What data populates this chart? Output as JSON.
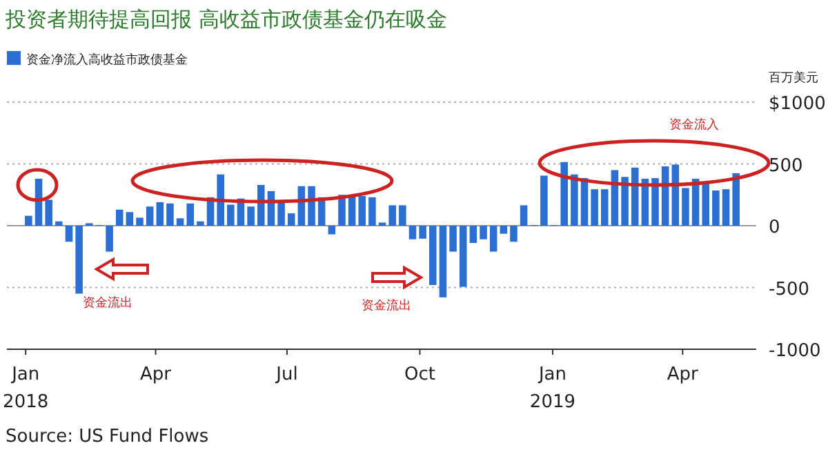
{
  "chart_data": {
    "type": "bar",
    "title": "投资者期待提高回报 高收益市政债基金仍在吸金",
    "ylabel": "百万美元",
    "annotations": [
      "资金流出",
      "资金流出",
      "资金流入",
      "Source: US Fund Flows"
    ],
    "x": [
      "2018-01-03",
      "2018-01-10",
      "2018-01-17",
      "2018-01-24",
      "2018-01-31",
      "2018-02-07",
      "2018-02-14",
      "2018-02-21",
      "2018-02-28",
      "2018-03-07",
      "2018-03-14",
      "2018-03-21",
      "2018-03-28",
      "2018-04-04",
      "2018-04-11",
      "2018-04-18",
      "2018-04-25",
      "2018-05-02",
      "2018-05-09",
      "2018-05-16",
      "2018-05-23",
      "2018-05-30",
      "2018-06-06",
      "2018-06-13",
      "2018-06-20",
      "2018-06-27",
      "2018-07-04",
      "2018-07-11",
      "2018-07-18",
      "2018-07-25",
      "2018-08-01",
      "2018-08-08",
      "2018-08-15",
      "2018-08-22",
      "2018-08-29",
      "2018-09-05",
      "2018-09-12",
      "2018-09-19",
      "2018-09-26",
      "2018-10-03",
      "2018-10-10",
      "2018-10-17",
      "2018-10-24",
      "2018-10-31",
      "2018-11-07",
      "2018-11-14",
      "2018-11-21",
      "2018-11-28",
      "2018-12-05",
      "2018-12-12",
      "2018-12-19",
      "2018-12-26",
      "2019-01-02",
      "2019-01-09",
      "2019-01-16",
      "2019-01-23",
      "2019-01-30",
      "2019-02-06",
      "2019-02-13",
      "2019-02-20",
      "2019-02-27",
      "2019-03-06",
      "2019-03-13",
      "2019-03-20",
      "2019-03-27",
      "2019-04-03",
      "2019-04-10",
      "2019-04-17",
      "2019-04-24",
      "2019-05-01",
      "2019-05-08"
    ],
    "series": [
      {
        "name": "资金净流入高收益市政债基金",
        "color": "#2a6fd1",
        "values": [
          80,
          380,
          210,
          35,
          -130,
          -550,
          20,
          5,
          -210,
          130,
          110,
          65,
          155,
          190,
          180,
          60,
          180,
          35,
          230,
          415,
          170,
          220,
          155,
          330,
          280,
          190,
          100,
          320,
          320,
          230,
          -70,
          250,
          250,
          240,
          230,
          25,
          165,
          165,
          -110,
          -105,
          -480,
          -580,
          -210,
          -495,
          -140,
          -110,
          -210,
          -65,
          -130,
          165,
          5,
          405,
          5,
          515,
          415,
          385,
          295,
          295,
          450,
          395,
          470,
          380,
          385,
          480,
          495,
          305,
          380,
          340,
          285,
          295,
          425
        ]
      }
    ],
    "xlim": [
      "2017-12-19",
      "2019-05-22"
    ],
    "xticks": [
      {
        "value": "2018-01-01",
        "label": "Jan\n2018"
      },
      {
        "value": "2018-04-01",
        "label": "Apr"
      },
      {
        "value": "2018-07-01",
        "label": "Jul"
      },
      {
        "value": "2018-10-01",
        "label": "Oct"
      },
      {
        "value": "2019-01-01",
        "label": "Jan\n2019"
      },
      {
        "value": "2019-04-01",
        "label": "Apr"
      }
    ],
    "ylim": [
      -1000,
      1000
    ],
    "yticks": [
      {
        "value": 1000,
        "label": "$1000"
      },
      500,
      0,
      -500,
      -1000
    ],
    "grid": "y",
    "legend": "top left"
  }
}
